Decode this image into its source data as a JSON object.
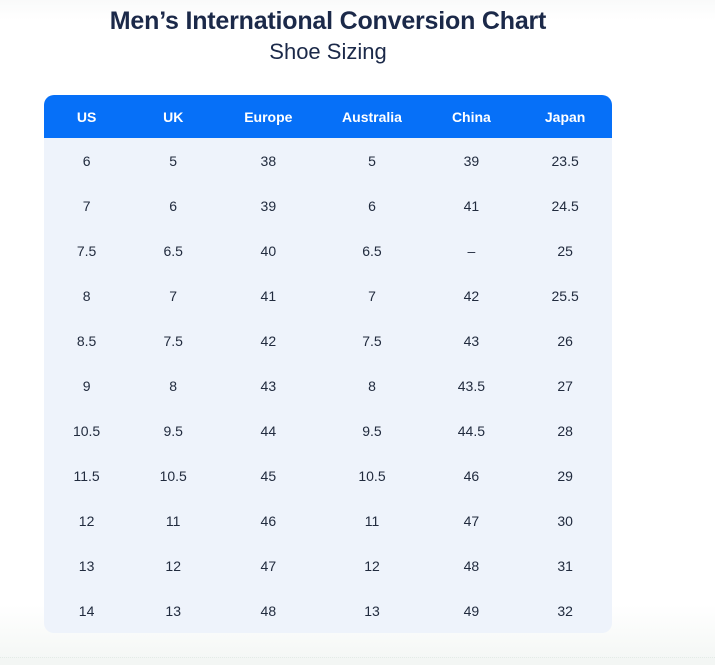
{
  "page": {
    "title": "Men’s International Conversion Chart",
    "subtitle": "Shoe Sizing"
  },
  "chart_data": {
    "type": "table",
    "title": "Men’s International Conversion Chart",
    "subtitle": "Shoe Sizing",
    "columns": [
      "US",
      "UK",
      "Europe",
      "Australia",
      "China",
      "Japan"
    ],
    "rows": [
      [
        "6",
        "5",
        "38",
        "5",
        "39",
        "23.5"
      ],
      [
        "7",
        "6",
        "39",
        "6",
        "41",
        "24.5"
      ],
      [
        "7.5",
        "6.5",
        "40",
        "6.5",
        "–",
        "25"
      ],
      [
        "8",
        "7",
        "41",
        "7",
        "42",
        "25.5"
      ],
      [
        "8.5",
        "7.5",
        "42",
        "7.5",
        "43",
        "26"
      ],
      [
        "9",
        "8",
        "43",
        "8",
        "43.5",
        "27"
      ],
      [
        "10.5",
        "9.5",
        "44",
        "9.5",
        "44.5",
        "28"
      ],
      [
        "11.5",
        "10.5",
        "45",
        "10.5",
        "46",
        "29"
      ],
      [
        "12",
        "11",
        "46",
        "11",
        "47",
        "30"
      ],
      [
        "13",
        "12",
        "47",
        "12",
        "48",
        "31"
      ],
      [
        "14",
        "13",
        "48",
        "13",
        "49",
        "32"
      ]
    ],
    "missing_value_marker": "–"
  },
  "style": {
    "colors": {
      "header_bg": "#0670f8",
      "header_text": "#ffffff",
      "body_bg": "#eef3fb",
      "title_text": "#1b2949",
      "cell_text": "#212b3e"
    }
  }
}
